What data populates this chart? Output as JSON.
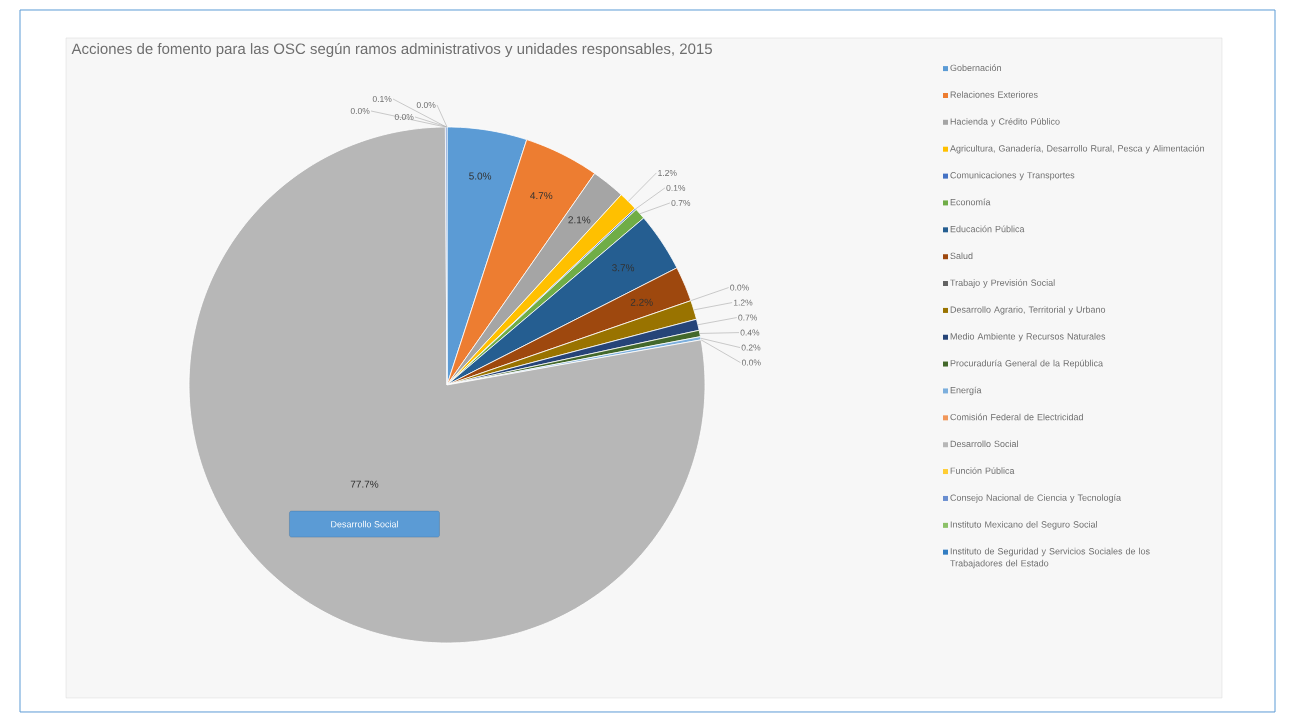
{
  "chart_data": {
    "type": "pie",
    "title": "Acciones de fomento para las OSC según ramos administrativos y unidades responsables, 2015",
    "categories": [
      "Gobernación",
      "Relaciones Exteriores",
      "Hacienda y Crédito Público",
      "Agricultura, Ganadería, Desarrollo Rural, Pesca y Alimentación",
      "Comunicaciones y Transportes",
      "Economía",
      "Educación Pública",
      "Salud",
      "Trabajo y Previsión Social",
      "Desarrollo Agrario, Territorial y Urbano",
      "Medio Ambiente y Recursos Naturales",
      "Procuraduría General de la República",
      "Energía",
      "Comisión Federal de Electricidad",
      "Desarrollo Social",
      "Función Pública",
      "Consejo Nacional de Ciencia y Tecnología",
      "Instituto Mexicano del Seguro Social",
      "Instituto de Seguridad y Servicios Sociales de los Trabajadores del Estado"
    ],
    "values": [
      5.0,
      4.7,
      2.1,
      1.2,
      0.1,
      0.7,
      3.7,
      2.2,
      0.0,
      1.2,
      0.7,
      0.4,
      0.2,
      0.0,
      77.7,
      0.0,
      0.1,
      0.0,
      0.0
    ],
    "value_labels": [
      "5.0%",
      "4.7%",
      "2.1%",
      "1.2%",
      "0.1%",
      "0.7%",
      "3.7%",
      "2.2%",
      "0.0%",
      "1.2%",
      "0.7%",
      "0.4%",
      "0.2%",
      "0.0%",
      "77.7%",
      "0.0%",
      "0.1%",
      "0.0%",
      "0.0%"
    ],
    "colors": [
      "#5b9bd5",
      "#ed7d31",
      "#a5a5a5",
      "#ffc000",
      "#4472c4",
      "#70ad47",
      "#255e91",
      "#9e480e",
      "#636363",
      "#997300",
      "#264478",
      "#43682b",
      "#7cafdd",
      "#f1975a",
      "#b7b7b7",
      "#ffcd33",
      "#698ed0",
      "#8cc168",
      "#327dc2"
    ],
    "annotations": [
      {
        "text": "Desarrollo Social",
        "x": "Desarrollo Social"
      }
    ],
    "legend": "right"
  }
}
